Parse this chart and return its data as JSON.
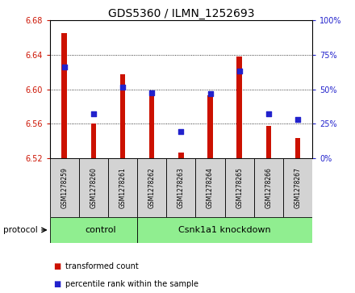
{
  "title": "GDS5360 / ILMN_1252693",
  "samples": [
    "GSM1278259",
    "GSM1278260",
    "GSM1278261",
    "GSM1278262",
    "GSM1278263",
    "GSM1278264",
    "GSM1278265",
    "GSM1278266",
    "GSM1278267"
  ],
  "bar_values": [
    6.665,
    6.56,
    6.618,
    6.594,
    6.527,
    6.593,
    6.638,
    6.558,
    6.543
  ],
  "percentile_values": [
    6.626,
    6.572,
    6.603,
    6.596,
    6.551,
    6.595,
    6.621,
    6.572,
    6.565
  ],
  "bar_bottom": 6.52,
  "ylim_left": [
    6.52,
    6.68
  ],
  "ylim_right": [
    0,
    100
  ],
  "yticks_left": [
    6.52,
    6.56,
    6.6,
    6.64,
    6.68
  ],
  "yticks_right": [
    0,
    25,
    50,
    75,
    100
  ],
  "bar_color": "#cc1100",
  "dot_color": "#2222cc",
  "protocol_groups": [
    {
      "label": "control",
      "samples_count": 3
    },
    {
      "label": "Csnk1a1 knockdown",
      "samples_count": 6
    }
  ],
  "protocol_color": "#90ee90",
  "legend_items": [
    {
      "label": "transformed count",
      "color": "#cc1100"
    },
    {
      "label": "percentile rank within the sample",
      "color": "#2222cc"
    }
  ],
  "title_fontsize": 10,
  "bar_width": 0.18,
  "ylabel_left_color": "#cc1100",
  "ylabel_right_color": "#2222cc",
  "sample_box_color": "#d3d3d3"
}
